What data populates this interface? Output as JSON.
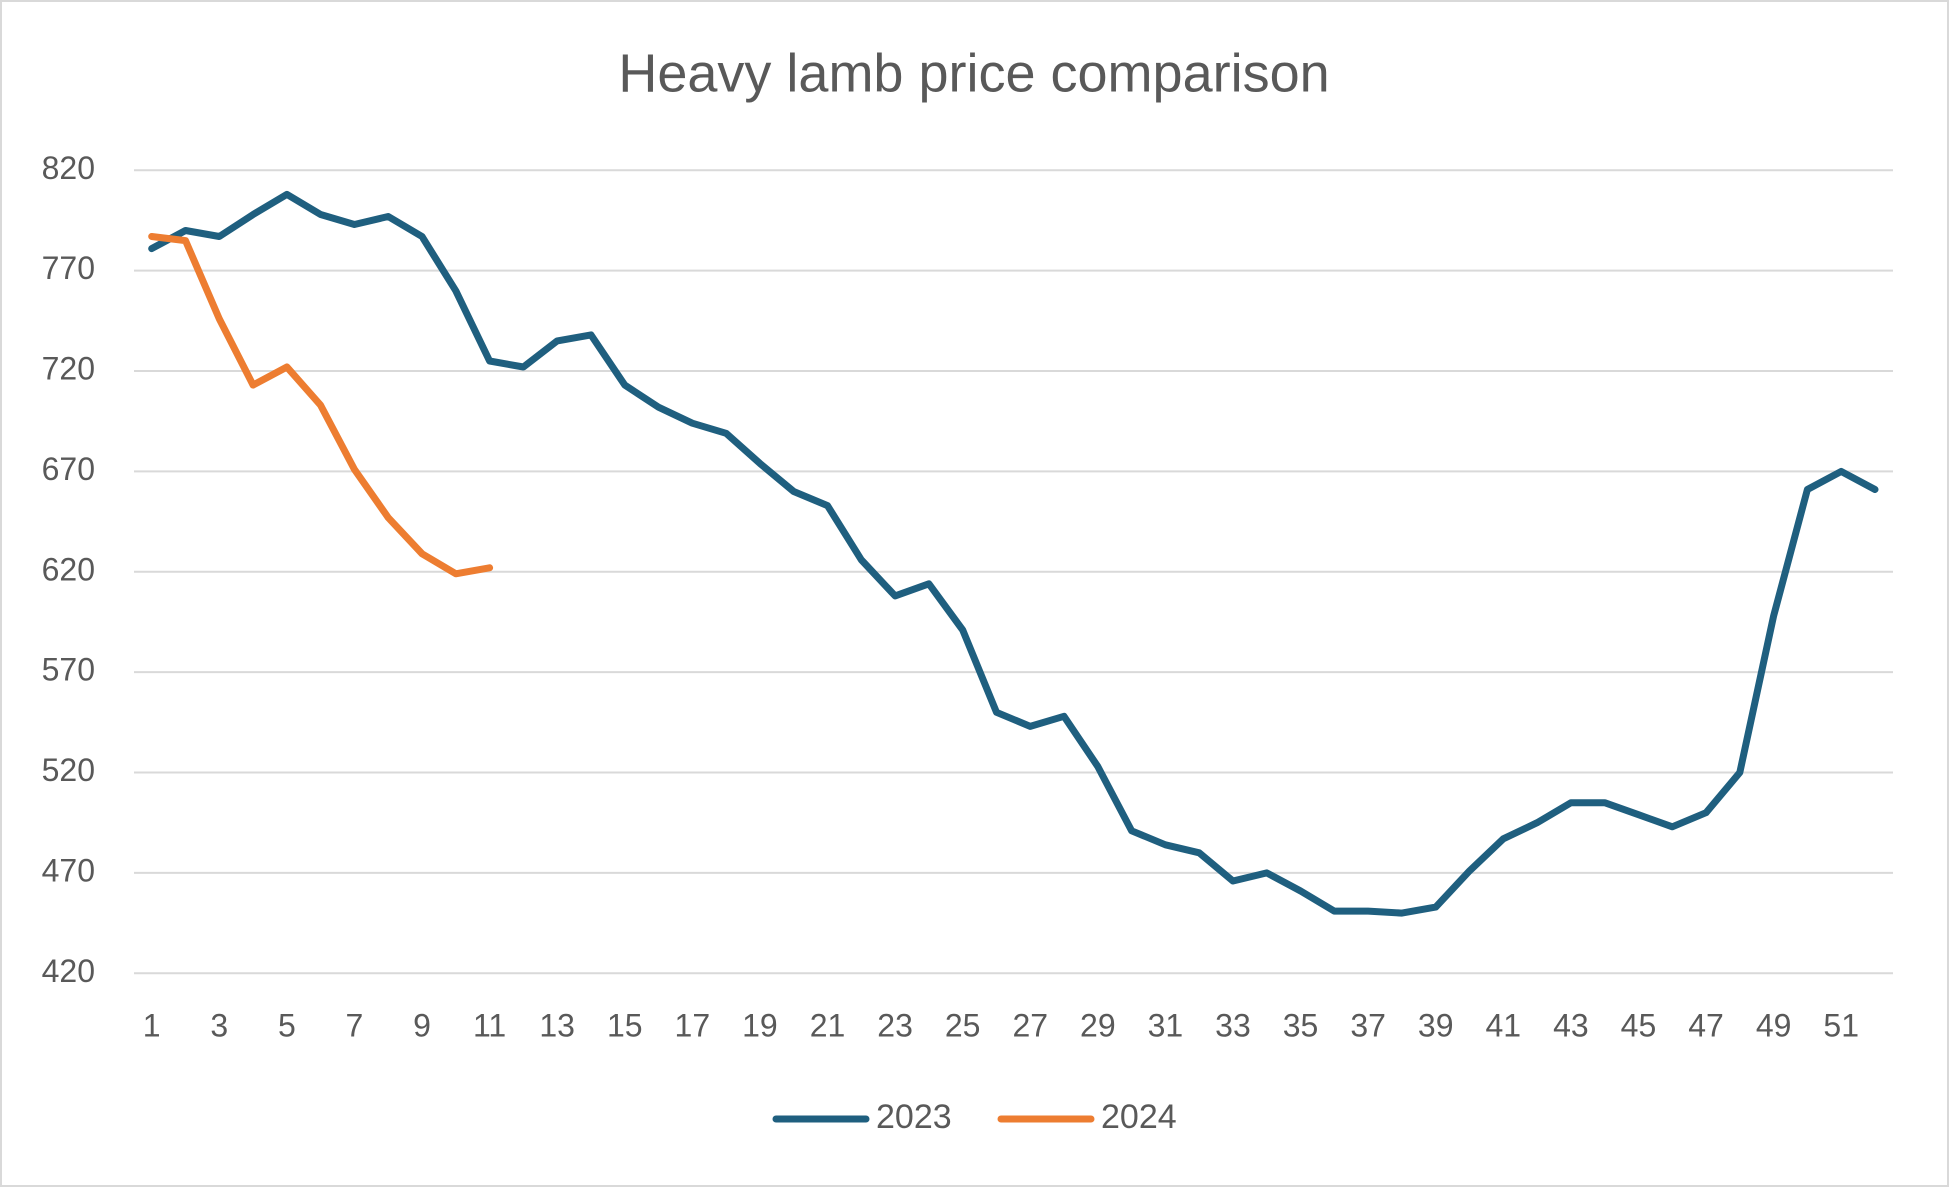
{
  "chart_data": {
    "type": "line",
    "title": "Heavy lamb price comparison",
    "categories": [
      1,
      null,
      3,
      null,
      5,
      null,
      7,
      null,
      9,
      null,
      11,
      null,
      13,
      null,
      15,
      null,
      17,
      null,
      19,
      null,
      21,
      null,
      23,
      null,
      25,
      null,
      27,
      null,
      29,
      null,
      31,
      null,
      33,
      null,
      35,
      null,
      37,
      null,
      39,
      null,
      41,
      null,
      43,
      null,
      45,
      null,
      47,
      null,
      49,
      null,
      51,
      null
    ],
    "series": [
      {
        "name": "2023",
        "color": "#1f5f7f",
        "values": [
          781,
          790,
          787,
          798,
          808,
          798,
          793,
          797,
          787,
          760,
          725,
          722,
          735,
          738,
          713,
          702,
          694,
          689,
          674,
          660,
          653,
          626,
          608,
          614,
          591,
          550,
          543,
          548,
          523,
          491,
          484,
          480,
          466,
          470,
          461,
          451,
          451,
          450,
          453,
          471,
          487,
          495,
          505,
          505,
          499,
          493,
          500,
          520,
          598,
          661,
          670,
          661
        ]
      },
      {
        "name": "2024",
        "color": "#ed7d31",
        "values": [
          787,
          785,
          746,
          713,
          722,
          703,
          671,
          647,
          629,
          619,
          622,
          null,
          null,
          null,
          null,
          null,
          null,
          null,
          null,
          null,
          null,
          null,
          null,
          null,
          null,
          null,
          null,
          null,
          null,
          null,
          null,
          null,
          null,
          null,
          null,
          null,
          null,
          null,
          null,
          null,
          null,
          null,
          null,
          null,
          null,
          null,
          null,
          null,
          null,
          null,
          null,
          null
        ]
      }
    ],
    "ylim": [
      420,
      820
    ],
    "yticks": [
      420,
      470,
      520,
      570,
      620,
      670,
      720,
      770,
      820
    ],
    "grid": true,
    "legend": "bottom"
  }
}
